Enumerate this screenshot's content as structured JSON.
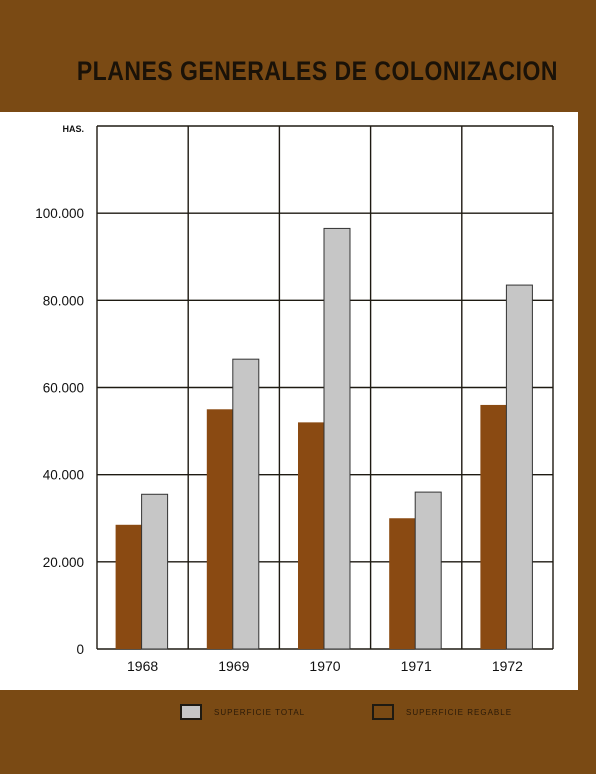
{
  "title": "PLANES GENERALES DE COLONIZACION",
  "chart_data": {
    "type": "bar",
    "title": "PLANES GENERALES DE COLONIZACION",
    "ylabel": "HAS.",
    "xlabel": "",
    "categories": [
      "1968",
      "1969",
      "1970",
      "1971",
      "1972"
    ],
    "series": [
      {
        "name": "SUPERFICIE REGABLE",
        "values": [
          28500,
          55000,
          52000,
          30000,
          56000
        ],
        "color": "#8a4a12"
      },
      {
        "name": "SUPERFICIE TOTAL",
        "values": [
          35500,
          66500,
          96500,
          36000,
          83500
        ],
        "color": "#c6c6c6"
      }
    ],
    "yticks": [
      "0",
      "20.000",
      "40.000",
      "60.000",
      "80.000",
      "100.000"
    ],
    "ylim": [
      0,
      120000
    ],
    "grid": true,
    "legend_position": "bottom"
  },
  "legend": [
    {
      "label": "SUPERFICIE TOTAL",
      "color": "#c6c6c6"
    },
    {
      "label": "SUPERFICIE REGABLE",
      "color": "#7a4a14"
    }
  ]
}
